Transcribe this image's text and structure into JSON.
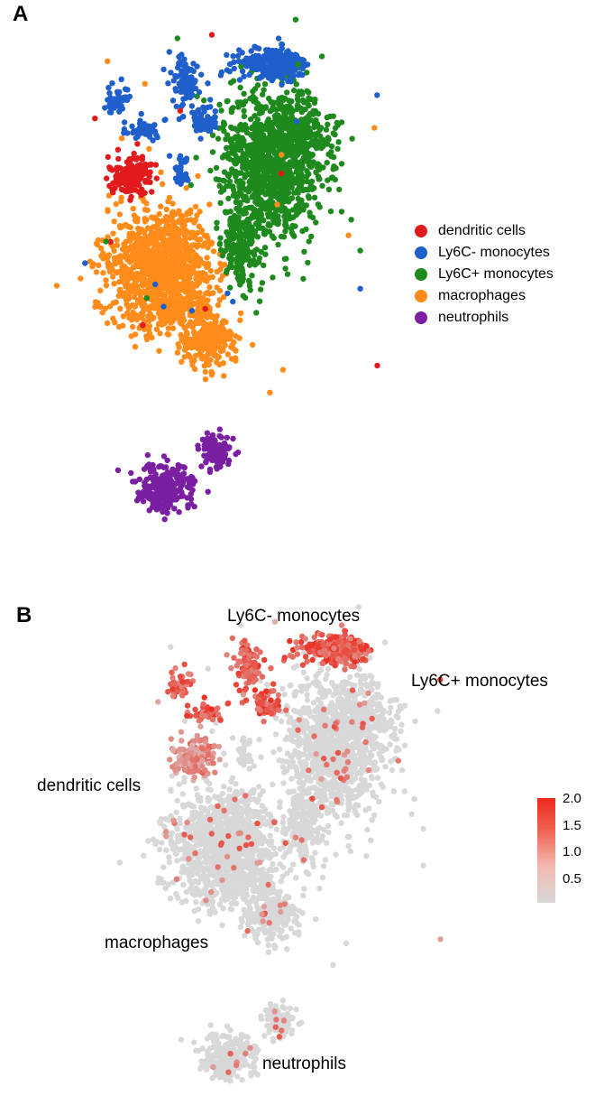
{
  "chart_data": [
    {
      "panel": "A",
      "type": "scatter",
      "title": "",
      "xlabel": "",
      "ylabel": "",
      "grid": false,
      "legend_position": "right",
      "legend": [
        {
          "label": "dendritic cells",
          "color": "#e31a1c"
        },
        {
          "label": "Ly6C- monocytes",
          "color": "#1f5fcc"
        },
        {
          "label": "Ly6C+ monocytes",
          "color": "#1e8a1e"
        },
        {
          "label": "macrophages",
          "color": "#ff8c1a"
        },
        {
          "label": "neutrophils",
          "color": "#7b1fa2"
        }
      ]
    },
    {
      "panel": "B",
      "type": "scatter",
      "title": "",
      "xlabel": "",
      "ylabel": "",
      "grid": false,
      "color_scale": {
        "low": "#d8d8d8",
        "high": "#ec2a1c",
        "ticks": [
          "2.0",
          "1.5",
          "1.0",
          "0.5"
        ],
        "range": [
          0.1,
          2.0
        ]
      },
      "cluster_labels": [
        "Ly6C- monocytes",
        "Ly6C+ monocytes",
        "dendritic cells",
        "macrophages",
        "neutrophils"
      ]
    }
  ],
  "panels": {
    "a": {
      "label": "A"
    },
    "b": {
      "label": "B"
    }
  }
}
